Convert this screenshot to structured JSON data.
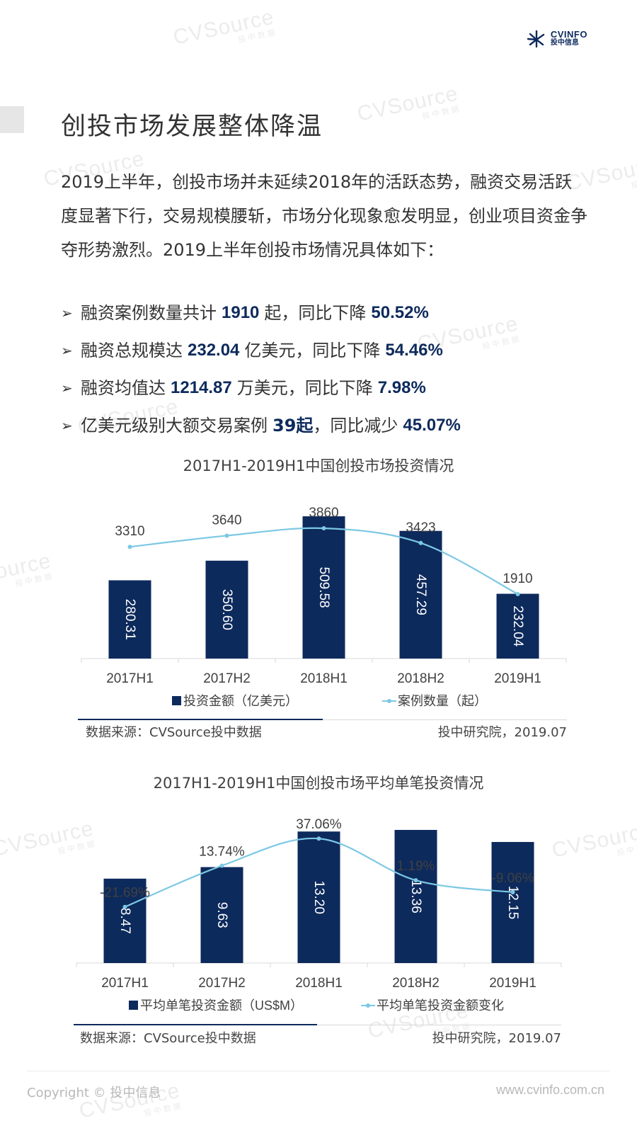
{
  "logo": {
    "brand": "CVINFO",
    "subtitle": "投中信息"
  },
  "watermark": {
    "text": "CVSource",
    "subtext": "投中数据"
  },
  "heading": "创投市场发展整体降温",
  "intro": "2019上半年，创投市场并未延续2018年的活跃态势，融资交易活跃度显著下行，交易规模腰斩，市场分化现象愈发明显，创业项目资金争夺形势激烈。2019上半年创投市场情况具体如下：",
  "bullets": [
    {
      "a": "融资案例数量共计",
      "v1": "1910",
      "b": "起，同比下降",
      "v2": "50.52%",
      "c": ""
    },
    {
      "a": "融资总规模达",
      "v1": "232.04",
      "b": "亿美元，同比下降",
      "v2": "54.46%",
      "c": ""
    },
    {
      "a": "融资均值达",
      "v1": "1214.87",
      "b": "万美元，同比下降",
      "v2": "7.98%",
      "c": ""
    },
    {
      "a": "亿美元级别大额交易案例",
      "v1": "39起",
      "b": "，同比减少",
      "v2": "45.07%",
      "c": ""
    }
  ],
  "chart_data": [
    {
      "type": "bar",
      "title": "2017H1-2019H1中国创投市场投资情况",
      "categories": [
        "2017H1",
        "2017H2",
        "2018H1",
        "2018H2",
        "2019H1"
      ],
      "series": [
        {
          "name": "投资金额（亿美元）",
          "kind": "bar",
          "values": [
            280.31,
            350.6,
            509.58,
            457.29,
            232.04
          ],
          "labels": [
            "280.31",
            "350.60",
            "509.58",
            "457.29",
            "232.04"
          ]
        },
        {
          "name": "案例数量（起）",
          "kind": "line",
          "values": [
            3310,
            3640,
            3860,
            3423,
            1910
          ],
          "labels": [
            "3310",
            "3640",
            "3860",
            "3423",
            "1910"
          ]
        }
      ],
      "bar_ylim": [
        0,
        520
      ],
      "line_ylim": [
        0,
        4300
      ],
      "legend": "bottom",
      "source": "数据来源：CVSource投中数据",
      "credit": "投中研究院，2019.07"
    },
    {
      "type": "bar",
      "title": "2017H1-2019H1中国创投市场平均单笔投资情况",
      "categories": [
        "2017H1",
        "2017H2",
        "2018H1",
        "2018H2",
        "2019H1"
      ],
      "series": [
        {
          "name": "平均单笔投资金额（US$M）",
          "kind": "bar",
          "values": [
            8.47,
            9.63,
            13.2,
            13.36,
            12.15
          ],
          "labels": [
            "8.47",
            "9.63",
            "13.20",
            "13.36",
            "12.15"
          ]
        },
        {
          "name": "平均单笔投资金额变化",
          "kind": "line",
          "values": [
            -21.69,
            13.74,
            37.06,
            1.19,
            -9.06
          ],
          "labels": [
            "-21.69%",
            "13.74%",
            "37.06%",
            "1.19%",
            "-9.06%"
          ]
        }
      ],
      "bar_ylim": [
        0,
        14
      ],
      "line_ylim": [
        -70,
        50
      ],
      "legend": "bottom",
      "source": "数据来源：CVSource投中数据",
      "credit": "投中研究院，2019.07"
    }
  ],
  "colors": {
    "bar": "#0d2a5c",
    "line": "#7cc8e4",
    "accent": "#0d2a5c"
  },
  "footer": {
    "copyright": "Copyright © 投中信息",
    "site": "www.cvinfo.com.cn"
  }
}
